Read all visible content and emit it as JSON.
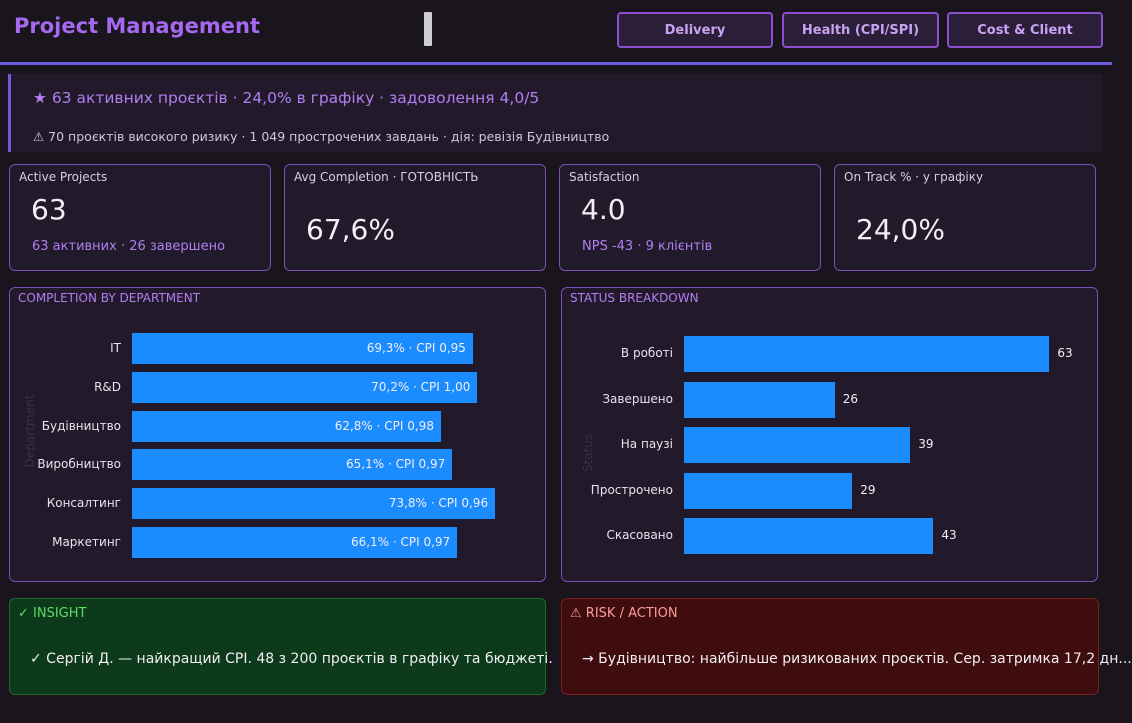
{
  "header": {
    "title": "Project Management",
    "tabs": [
      "Delivery",
      "Health (CPI/SPI)",
      "Cost & Client"
    ]
  },
  "banner": {
    "main": "★ 63 активних проєктів · 24,0% в графіку · задоволення 4,0/5",
    "sub": "⚠ 70 проєктів високого ризику · 1 049 прострочених завдань · дія: ревізія Будівництво"
  },
  "kpis": [
    {
      "label": "Active Projects",
      "value": "63",
      "sub": "63 активних · 26 завершено"
    },
    {
      "label": "Avg Completion · ГОТОВНІСТЬ",
      "value": "67,6%",
      "sub": ""
    },
    {
      "label": "Satisfaction",
      "value": "4.0",
      "sub": "NPS -43 · 9 клієнтів"
    },
    {
      "label": "On Track % · у графіку",
      "value": "24,0%",
      "sub": ""
    }
  ],
  "completion_panel": {
    "title": "COMPLETION BY DEPARTMENT",
    "axis_title": "Department"
  },
  "status_panel": {
    "title": "STATUS BREAKDOWN",
    "axis_title": "Status"
  },
  "chart_data": [
    {
      "type": "bar",
      "orientation": "horizontal",
      "title": "COMPLETION BY DEPARTMENT",
      "ylabel": "Department",
      "categories": [
        "IT",
        "R&D",
        "Будівництво",
        "Виробництво",
        "Консалтинг",
        "Маркетинг"
      ],
      "values": [
        69.3,
        70.2,
        62.8,
        65.1,
        73.8,
        66.1
      ],
      "data_labels": [
        "69,3% · CPI 0,95",
        "70,2% · CPI 1,00",
        "62,8% · CPI 0,98",
        "65,1% · CPI 0,97",
        "73,8% · CPI 0,96",
        "66,1% · CPI 0,97"
      ],
      "color": "#1a8cff"
    },
    {
      "type": "bar",
      "orientation": "horizontal",
      "title": "STATUS BREAKDOWN",
      "ylabel": "Status",
      "categories": [
        "В роботі",
        "Завершено",
        "На паузі",
        "Прострочено",
        "Скасовано"
      ],
      "values": [
        63,
        26,
        39,
        29,
        43
      ],
      "data_labels": [
        "63",
        "26",
        "39",
        "29",
        "43"
      ],
      "color": "#1a8cff"
    }
  ],
  "insight": {
    "title": "✓ INSIGHT",
    "text": "✓ Сергій Д. — найкращий CPI. 48 з 200 проєктів в графіку та бюджеті."
  },
  "risk": {
    "title": "⚠ RISK / ACTION",
    "text": "→ Будівництво: найбільше ризикованих проєктів. Сер. затримка 17,2 дн..."
  }
}
